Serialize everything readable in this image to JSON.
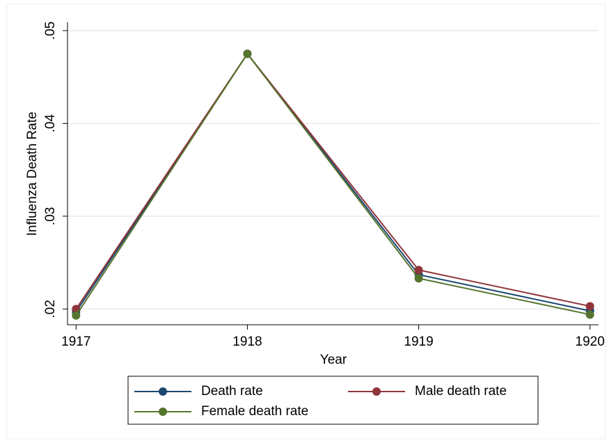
{
  "chart_data": {
    "type": "line",
    "x_label": "Year",
    "y_label": "Influenza Death Rate",
    "x": [
      1917,
      1918,
      1919,
      1920
    ],
    "series": [
      {
        "name": "Death rate",
        "color": "#1a476f",
        "values": [
          0.0197,
          0.0475,
          0.0237,
          0.0198
        ]
      },
      {
        "name": "Male death rate",
        "color": "#90353b",
        "values": [
          0.02,
          0.0475,
          0.0242,
          0.0203
        ]
      },
      {
        "name": "Female death rate",
        "color": "#55752f",
        "values": [
          0.0193,
          0.0475,
          0.0233,
          0.0194
        ]
      }
    ],
    "xlim": [
      1916.95,
      1920.05
    ],
    "xticks": [
      1917,
      1918,
      1919,
      1920
    ],
    "ylim": [
      0.0183,
      0.0509
    ],
    "yticks": [
      {
        "value": 0.02,
        "label": ".02"
      },
      {
        "value": 0.03,
        "label": ".03"
      },
      {
        "value": 0.04,
        "label": ".04"
      },
      {
        "value": 0.05,
        "label": ".05"
      }
    ],
    "grid": true,
    "legend": "bottom"
  }
}
